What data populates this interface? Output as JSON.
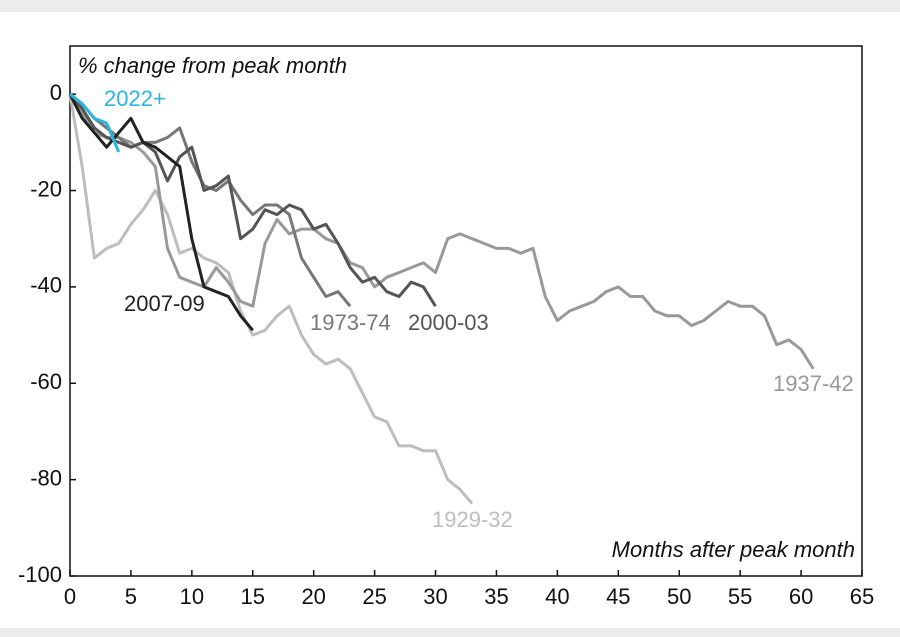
{
  "chart_data": {
    "type": "line",
    "ylabel": "% change from peak month",
    "xlabel": "Months after peak month",
    "x": [
      0,
      1,
      2,
      3,
      4,
      5,
      6,
      7,
      8,
      9,
      10,
      11,
      12,
      13,
      14,
      15,
      16,
      17,
      18,
      19,
      20,
      21,
      22,
      23,
      24,
      25,
      26,
      27,
      28,
      29,
      30,
      31,
      32,
      33,
      34,
      35,
      36,
      37,
      38,
      39,
      40,
      41,
      42,
      43,
      44,
      45,
      46,
      47,
      48,
      49,
      50,
      51,
      52,
      53,
      54,
      55,
      56,
      57,
      58,
      59,
      60,
      61
    ],
    "xlim": [
      0,
      65
    ],
    "xticks": [
      0,
      5,
      10,
      15,
      20,
      25,
      30,
      35,
      40,
      45,
      50,
      55,
      60,
      65
    ],
    "ylim": [
      -100,
      10
    ],
    "yticks": [
      0,
      -20,
      -40,
      -60,
      -80,
      -100
    ],
    "series": [
      {
        "name": "1929-32",
        "color": "#bdbdbd",
        "values": [
          0,
          -15,
          -34,
          -32,
          -31,
          -27,
          -24,
          -20,
          -25,
          -33,
          -32,
          -34,
          -35,
          -37,
          -45,
          -50,
          -49,
          -46,
          -44,
          -50,
          -54,
          -56,
          -55,
          -57,
          -62,
          -67,
          -68,
          -73,
          -73,
          -74,
          -74,
          -80,
          -82,
          -85,
          null,
          null,
          null,
          null,
          null,
          null,
          null,
          null,
          null,
          null,
          null,
          null,
          null,
          null,
          null,
          null,
          null,
          null,
          null,
          null,
          null,
          null,
          null,
          null,
          null,
          null,
          null,
          null
        ]
      },
      {
        "name": "1937-42",
        "color": "#999999",
        "values": [
          0,
          -4,
          -8,
          -9,
          -9,
          -10,
          -12,
          -15,
          -32,
          -38,
          -39,
          -40,
          -36,
          -39,
          -43,
          -44,
          -31,
          -26,
          -29,
          -28,
          -28,
          -30,
          -31,
          -35,
          -36,
          -40,
          -38,
          -37,
          -36,
          -35,
          -37,
          -30,
          -29,
          -30,
          -31,
          -32,
          -32,
          -33,
          -32,
          -42,
          -47,
          -45,
          -44,
          -43,
          -41,
          -40,
          -42,
          -42,
          -45,
          -46,
          -46,
          -48,
          -47,
          -45,
          -43,
          -44,
          -44,
          -46,
          -52,
          -51,
          -53,
          -57
        ]
      },
      {
        "name": "1973-74",
        "color": "#777777",
        "values": [
          0,
          -2,
          -5,
          -7,
          -9,
          -11,
          -10,
          -10,
          -9,
          -7,
          -14,
          -19,
          -20,
          -18,
          -22,
          -25,
          -23,
          -23,
          -25,
          -34,
          -38,
          -42,
          -41,
          -44,
          null,
          null,
          null,
          null,
          null,
          null,
          null,
          null,
          null,
          null,
          null,
          null,
          null,
          null,
          null,
          null,
          null,
          null,
          null,
          null,
          null,
          null,
          null,
          null,
          null,
          null,
          null,
          null,
          null,
          null,
          null,
          null,
          null,
          null,
          null,
          null,
          null,
          null
        ]
      },
      {
        "name": "2000-03",
        "color": "#555555",
        "values": [
          0,
          -3,
          -7,
          -9,
          -10,
          -11,
          -10,
          -12,
          -18,
          -13,
          -11,
          -20,
          -19,
          -17,
          -30,
          -28,
          -24,
          -25,
          -23,
          -24,
          -28,
          -27,
          -31,
          -36,
          -39,
          -38,
          -41,
          -42,
          -39,
          -40,
          -44,
          null,
          null,
          null,
          null,
          null,
          null,
          null,
          null,
          null,
          null,
          null,
          null,
          null,
          null,
          null,
          null,
          null,
          null,
          null,
          null,
          null,
          null,
          null,
          null,
          null,
          null,
          null,
          null,
          null,
          null,
          null
        ]
      },
      {
        "name": "2007-09",
        "color": "#222222",
        "values": [
          0,
          -5,
          -8,
          -11,
          -8,
          -5,
          -10,
          -11,
          -13,
          -15,
          -30,
          -40,
          -41,
          -42,
          -46,
          -49,
          null,
          null,
          null,
          null,
          null,
          null,
          null,
          null,
          null,
          null,
          null,
          null,
          null,
          null,
          null,
          null,
          null,
          null,
          null,
          null,
          null,
          null,
          null,
          null,
          null,
          null,
          null,
          null,
          null,
          null,
          null,
          null,
          null,
          null,
          null,
          null,
          null,
          null,
          null,
          null,
          null,
          null,
          null,
          null,
          null,
          null
        ]
      },
      {
        "name": "2022+",
        "color": "#29b6e0",
        "values": [
          0,
          -2,
          -5,
          -6,
          -12,
          null,
          null,
          null,
          null,
          null,
          null,
          null,
          null,
          null,
          null,
          null,
          null,
          null,
          null,
          null,
          null,
          null,
          null,
          null,
          null,
          null,
          null,
          null,
          null,
          null,
          null,
          null,
          null,
          null,
          null,
          null,
          null,
          null,
          null,
          null,
          null,
          null,
          null,
          null,
          null,
          null,
          null,
          null,
          null,
          null,
          null,
          null,
          null,
          null,
          null,
          null,
          null,
          null,
          null,
          null,
          null,
          null
        ]
      }
    ]
  }
}
